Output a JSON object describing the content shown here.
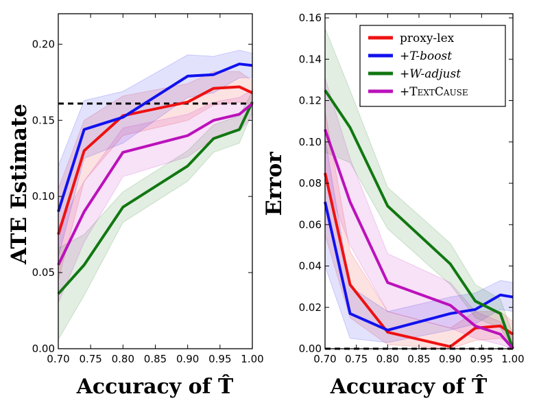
{
  "colors": {
    "proxy_lex": "#ee1111",
    "t_boost": "#1111ee",
    "w_adjust": "#117711",
    "textcause": "#bb11bb",
    "reference_line": "#000000"
  },
  "chart_data": [
    {
      "type": "line",
      "title": "",
      "xlabel": "Accuracy of T̂",
      "ylabel": "ATE Estimate",
      "xlim": [
        0.7,
        1.0
      ],
      "ylim": [
        0.0,
        0.2
      ],
      "yticks_max": 0.22,
      "x_ticks": [
        "0.70",
        "0.75",
        "0.80",
        "0.85",
        "0.90",
        "0.95",
        "1.00"
      ],
      "y_ticks": [
        "0.00",
        "0.05",
        "0.10",
        "0.15",
        "0.20"
      ],
      "grid": false,
      "reference_line": {
        "y": 0.161,
        "style": "dashed"
      },
      "x": [
        0.7,
        0.74,
        0.8,
        0.9,
        0.94,
        0.98,
        1.0
      ],
      "series": [
        {
          "key": "proxy_lex",
          "values": [
            0.075,
            0.13,
            0.153,
            0.162,
            0.171,
            0.172,
            0.168
          ],
          "lower": [
            0.045,
            0.11,
            0.14,
            0.15,
            0.16,
            0.162,
            0.16
          ],
          "upper": [
            0.105,
            0.15,
            0.166,
            0.174,
            0.182,
            0.182,
            0.176
          ]
        },
        {
          "key": "t_boost",
          "values": [
            0.09,
            0.144,
            0.152,
            0.179,
            0.18,
            0.187,
            0.186
          ],
          "lower": [
            0.06,
            0.125,
            0.135,
            0.165,
            0.168,
            0.178,
            0.178
          ],
          "upper": [
            0.12,
            0.163,
            0.169,
            0.193,
            0.192,
            0.196,
            0.194
          ]
        },
        {
          "key": "w_adjust",
          "values": [
            0.036,
            0.055,
            0.093,
            0.12,
            0.138,
            0.144,
            0.162
          ],
          "lower": [
            0.006,
            0.035,
            0.083,
            0.11,
            0.129,
            0.135,
            0.155
          ],
          "upper": [
            0.066,
            0.075,
            0.103,
            0.13,
            0.147,
            0.153,
            0.169
          ]
        },
        {
          "key": "textcause",
          "values": [
            0.055,
            0.09,
            0.129,
            0.14,
            0.15,
            0.154,
            0.161
          ],
          "lower": [
            0.03,
            0.07,
            0.113,
            0.126,
            0.138,
            0.143,
            0.152
          ],
          "upper": [
            0.08,
            0.11,
            0.145,
            0.154,
            0.162,
            0.165,
            0.17
          ]
        }
      ]
    },
    {
      "type": "line",
      "title": "",
      "xlabel": "Accuracy of T̂",
      "ylabel": "Error",
      "xlim": [
        0.7,
        1.0
      ],
      "ylim": [
        0.0,
        0.16
      ],
      "x_ticks": [
        "0.70",
        "0.75",
        "0.80",
        "0.85",
        "0.90",
        "0.95",
        "1.00"
      ],
      "y_ticks": [
        "0.00",
        "0.02",
        "0.04",
        "0.06",
        "0.08",
        "0.10",
        "0.12",
        "0.14",
        "0.16"
      ],
      "grid": false,
      "reference_line": {
        "y": 0.0,
        "style": "dashed"
      },
      "legend_position": "top-right",
      "x": [
        0.7,
        0.74,
        0.8,
        0.9,
        0.94,
        0.98,
        1.0
      ],
      "series": [
        {
          "key": "proxy_lex",
          "name_main": "proxy-lex",
          "name_plus": "",
          "name_style": "roman",
          "values": [
            0.085,
            0.031,
            0.008,
            0.001,
            0.01,
            0.011,
            0.007
          ],
          "lower": [
            0.055,
            0.015,
            0.002,
            0.0,
            0.004,
            0.005,
            0.002
          ],
          "upper": [
            0.115,
            0.047,
            0.018,
            0.01,
            0.018,
            0.018,
            0.013
          ]
        },
        {
          "key": "t_boost",
          "name_main": "T-boost",
          "name_plus": "+",
          "name_style": "italic",
          "values": [
            0.071,
            0.017,
            0.009,
            0.017,
            0.019,
            0.026,
            0.025
          ],
          "lower": [
            0.04,
            0.005,
            0.003,
            0.009,
            0.012,
            0.019,
            0.018
          ],
          "upper": [
            0.102,
            0.03,
            0.018,
            0.025,
            0.027,
            0.033,
            0.032
          ]
        },
        {
          "key": "w_adjust",
          "name_main": "W-adjust",
          "name_plus": "+",
          "name_style": "italic",
          "values": [
            0.125,
            0.107,
            0.069,
            0.041,
            0.023,
            0.017,
            0.0
          ],
          "lower": [
            0.095,
            0.09,
            0.058,
            0.031,
            0.015,
            0.01,
            0.0
          ],
          "upper": [
            0.155,
            0.125,
            0.078,
            0.051,
            0.031,
            0.024,
            0.007
          ]
        },
        {
          "key": "textcause",
          "name_main": "TextCause",
          "name_plus": "+",
          "name_style": "smallcaps",
          "values": [
            0.106,
            0.071,
            0.032,
            0.021,
            0.011,
            0.007,
            0.0
          ],
          "lower": [
            0.081,
            0.05,
            0.018,
            0.01,
            0.005,
            0.002,
            0.0
          ],
          "upper": [
            0.131,
            0.092,
            0.046,
            0.032,
            0.018,
            0.013,
            0.005
          ]
        }
      ]
    }
  ]
}
